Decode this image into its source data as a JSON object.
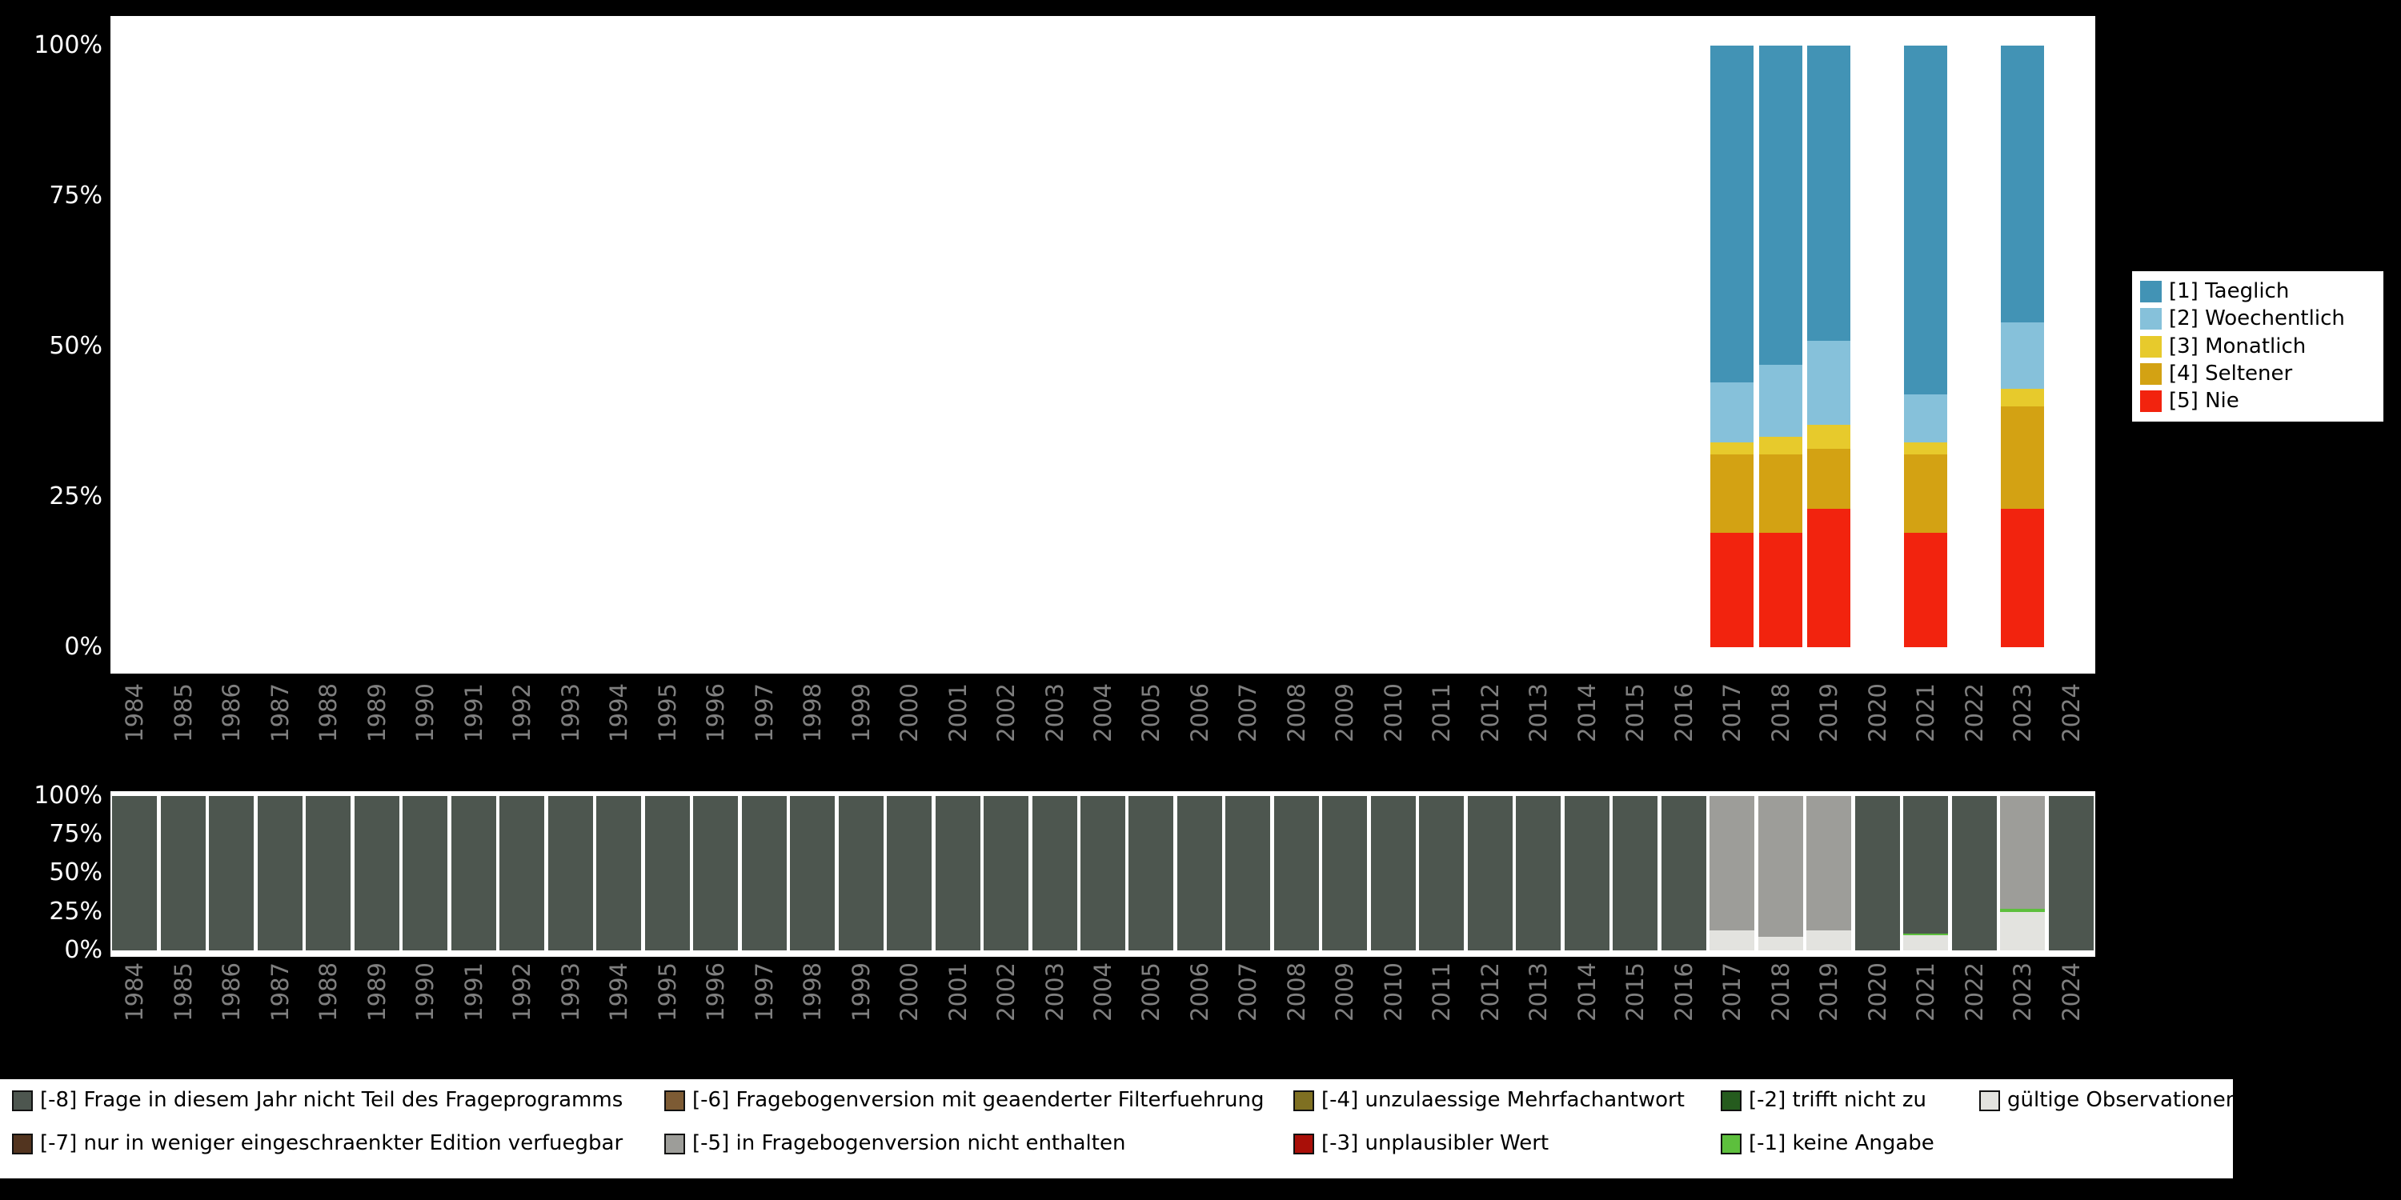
{
  "colors": {
    "background": "#000000",
    "panel": "#ffffff",
    "axis_tick_label": "#ffffff",
    "year_label": "#7f7f7f"
  },
  "axes": {
    "top_y_ticks": [
      "100%",
      "75%",
      "50%",
      "25%",
      "0%"
    ],
    "bottom_y_ticks": [
      "100%",
      "75%",
      "50%",
      "25%",
      "0%"
    ],
    "years": [
      "1984",
      "1985",
      "1986",
      "1987",
      "1988",
      "1989",
      "1990",
      "1991",
      "1992",
      "1993",
      "1994",
      "1995",
      "1996",
      "1997",
      "1998",
      "1999",
      "2000",
      "2001",
      "2002",
      "2003",
      "2004",
      "2005",
      "2006",
      "2007",
      "2008",
      "2009",
      "2010",
      "2011",
      "2012",
      "2013",
      "2014",
      "2015",
      "2016",
      "2017",
      "2018",
      "2019",
      "2020",
      "2021",
      "2022",
      "2023",
      "2024"
    ]
  },
  "legend_frequency": {
    "position": "right",
    "items": [
      {
        "label": "[1] Taeglich",
        "color": "#4293b5"
      },
      {
        "label": "[2] Woechentlich",
        "color": "#86c1da"
      },
      {
        "label": "[3] Monatlich",
        "color": "#e7ca2c"
      },
      {
        "label": "[4] Seltener",
        "color": "#d3a213"
      },
      {
        "label": "[5] Nie",
        "color": "#f2230e"
      }
    ]
  },
  "legend_missing": {
    "position": "bottom",
    "items": [
      {
        "key": "-8",
        "label": "[-8] Frage in diesem Jahr nicht Teil des Frageprogramms",
        "color": "#4d564f"
      },
      {
        "key": "-7",
        "label": "[-7] nur in weniger eingeschraenkter Edition verfuegbar",
        "color": "#52341f"
      },
      {
        "key": "-6",
        "label": "[-6] Fragebogenversion mit geaenderter Filterfuehrung",
        "color": "#7d5b34"
      },
      {
        "key": "-5",
        "label": "[-5] in Fragebogenversion nicht enthalten",
        "color": "#9d9d99"
      },
      {
        "key": "-4",
        "label": "[-4] unzulaessige Mehrfachantwort",
        "color": "#7f7022"
      },
      {
        "key": "-3",
        "label": "[-3] unplausibler Wert",
        "color": "#a90f08"
      },
      {
        "key": "-2",
        "label": "[-2] trifft nicht zu",
        "color": "#255b1e"
      },
      {
        "key": "-1",
        "label": "[-1] keine Angabe",
        "color": "#5dbf3d"
      },
      {
        "key": "valid",
        "label": "gültige Observationen",
        "color": "#e3e3df"
      }
    ]
  },
  "chart_data": [
    {
      "name": "frequency-distribution-by-year",
      "type": "bar",
      "stacked": true,
      "unit": "percent",
      "x_range": "1984-2024",
      "ylim": [
        0,
        100
      ],
      "grid": false,
      "legend_position": "right",
      "series": [
        {
          "name": "[1] Taeglich",
          "color": "#4293b5",
          "values_by_year": {
            "2017": 56,
            "2018": 53,
            "2019": 49,
            "2021": 58,
            "2023": 46
          }
        },
        {
          "name": "[2] Woechentlich",
          "color": "#86c1da",
          "values_by_year": {
            "2017": 10,
            "2018": 12,
            "2019": 14,
            "2021": 8,
            "2023": 11
          }
        },
        {
          "name": "[3] Monatlich",
          "color": "#e7ca2c",
          "values_by_year": {
            "2017": 2,
            "2018": 3,
            "2019": 4,
            "2021": 2,
            "2023": 3
          }
        },
        {
          "name": "[4] Seltener",
          "color": "#d3a213",
          "values_by_year": {
            "2017": 13,
            "2018": 13,
            "2019": 10,
            "2021": 13,
            "2023": 17
          }
        },
        {
          "name": "[5] Nie",
          "color": "#f2230e",
          "values_by_year": {
            "2017": 19,
            "2018": 19,
            "2019": 23,
            "2021": 19,
            "2023": 23
          }
        }
      ]
    },
    {
      "name": "missing-values-by-year",
      "type": "bar",
      "stacked": true,
      "unit": "percent",
      "x_range": "1984-2024",
      "ylim": [
        0,
        100
      ],
      "grid": false,
      "legend_position": "bottom",
      "stacks_by_year": {
        "1984": [
          {
            "key": "-8",
            "value": 100
          }
        ],
        "1985": [
          {
            "key": "-8",
            "value": 100
          }
        ],
        "1986": [
          {
            "key": "-8",
            "value": 100
          }
        ],
        "1987": [
          {
            "key": "-8",
            "value": 100
          }
        ],
        "1988": [
          {
            "key": "-8",
            "value": 100
          }
        ],
        "1989": [
          {
            "key": "-8",
            "value": 100
          }
        ],
        "1990": [
          {
            "key": "-8",
            "value": 100
          }
        ],
        "1991": [
          {
            "key": "-8",
            "value": 100
          }
        ],
        "1992": [
          {
            "key": "-8",
            "value": 100
          }
        ],
        "1993": [
          {
            "key": "-8",
            "value": 100
          }
        ],
        "1994": [
          {
            "key": "-8",
            "value": 100
          }
        ],
        "1995": [
          {
            "key": "-8",
            "value": 100
          }
        ],
        "1996": [
          {
            "key": "-8",
            "value": 100
          }
        ],
        "1997": [
          {
            "key": "-8",
            "value": 100
          }
        ],
        "1998": [
          {
            "key": "-8",
            "value": 100
          }
        ],
        "1999": [
          {
            "key": "-8",
            "value": 100
          }
        ],
        "2000": [
          {
            "key": "-8",
            "value": 100
          }
        ],
        "2001": [
          {
            "key": "-8",
            "value": 100
          }
        ],
        "2002": [
          {
            "key": "-8",
            "value": 100
          }
        ],
        "2003": [
          {
            "key": "-8",
            "value": 100
          }
        ],
        "2004": [
          {
            "key": "-8",
            "value": 100
          }
        ],
        "2005": [
          {
            "key": "-8",
            "value": 100
          }
        ],
        "2006": [
          {
            "key": "-8",
            "value": 100
          }
        ],
        "2007": [
          {
            "key": "-8",
            "value": 100
          }
        ],
        "2008": [
          {
            "key": "-8",
            "value": 100
          }
        ],
        "2009": [
          {
            "key": "-8",
            "value": 100
          }
        ],
        "2010": [
          {
            "key": "-8",
            "value": 100
          }
        ],
        "2011": [
          {
            "key": "-8",
            "value": 100
          }
        ],
        "2012": [
          {
            "key": "-8",
            "value": 100
          }
        ],
        "2013": [
          {
            "key": "-8",
            "value": 100
          }
        ],
        "2014": [
          {
            "key": "-8",
            "value": 100
          }
        ],
        "2015": [
          {
            "key": "-8",
            "value": 100
          }
        ],
        "2016": [
          {
            "key": "-8",
            "value": 100
          }
        ],
        "2017": [
          {
            "key": "valid",
            "value": 13
          },
          {
            "key": "-5",
            "value": 87
          }
        ],
        "2018": [
          {
            "key": "valid",
            "value": 9
          },
          {
            "key": "-5",
            "value": 91
          }
        ],
        "2019": [
          {
            "key": "valid",
            "value": 13
          },
          {
            "key": "-5",
            "value": 87
          }
        ],
        "2020": [
          {
            "key": "-8",
            "value": 100
          }
        ],
        "2021": [
          {
            "key": "valid",
            "value": 10
          },
          {
            "key": "-1",
            "value": 1
          },
          {
            "key": "-8",
            "value": 89
          }
        ],
        "2022": [
          {
            "key": "-8",
            "value": 100
          }
        ],
        "2023": [
          {
            "key": "valid",
            "value": 25
          },
          {
            "key": "-1",
            "value": 2
          },
          {
            "key": "-5",
            "value": 73
          }
        ],
        "2024": [
          {
            "key": "-8",
            "value": 100
          }
        ]
      }
    }
  ]
}
